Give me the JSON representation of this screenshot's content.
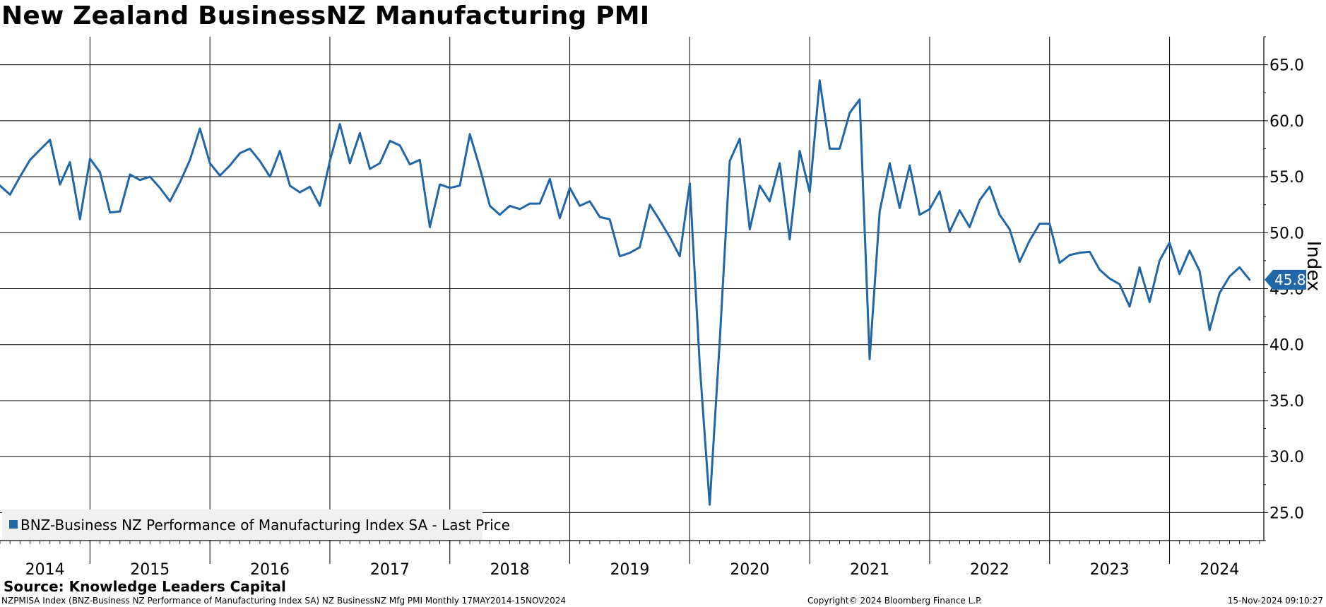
{
  "title": "New Zealand BusinessNZ Manufacturing PMI",
  "source": "Source: Knowledge Leaders Capital",
  "footer": {
    "left": "NZPMISA Index (BNZ-Business NZ Performance of Manufacturing Index SA) NZ BusinessNZ Mfg PMI  Monthly 17MAY2014-15NOV2024",
    "center": "Copyright© 2024 Bloomberg Finance L.P.",
    "right": "15-Nov-2024 09:10:27"
  },
  "colors": {
    "series": "#2166a6",
    "grid": "#000000",
    "legend_bg": "#f0f0f0"
  },
  "chart_data": {
    "type": "line",
    "x_unit": "month",
    "x_start": "2014-04",
    "x_end": "2024-10",
    "ylabel": "Index",
    "ylim": [
      22.5,
      67.5
    ],
    "yticks": [
      25,
      30,
      35,
      40,
      45,
      50,
      55,
      60,
      65
    ],
    "ytick_labels": [
      "25.0",
      "30.0",
      "35.0",
      "40.0",
      "45.0",
      "50.0",
      "55.0",
      "60.0",
      "65.0"
    ],
    "xtick_labels": [
      "2014",
      "2015",
      "2016",
      "2017",
      "2018",
      "2019",
      "2020",
      "2021",
      "2022",
      "2023",
      "2024"
    ],
    "last_value_label": "45.8",
    "grid": true,
    "legend_position": "bottom-left",
    "series": [
      {
        "name": "BNZ-Business NZ Performance of Manufacturing Index SA - Last Price",
        "color": "#2166a6",
        "values": [
          54.2,
          53.4,
          55.0,
          56.5,
          57.4,
          58.3,
          54.3,
          56.3,
          51.2,
          56.6,
          55.4,
          51.8,
          51.9,
          55.2,
          54.7,
          55.0,
          54.0,
          52.8,
          54.5,
          56.5,
          59.3,
          56.2,
          55.1,
          56.0,
          57.1,
          57.5,
          56.4,
          55.0,
          57.3,
          54.2,
          53.6,
          54.1,
          52.4,
          56.4,
          59.7,
          56.2,
          58.9,
          55.7,
          56.2,
          58.2,
          57.8,
          56.1,
          56.5,
          50.5,
          54.3,
          54.0,
          54.2,
          58.8,
          55.8,
          52.4,
          51.6,
          52.4,
          52.1,
          52.6,
          52.6,
          54.8,
          51.3,
          54.0,
          52.4,
          52.8,
          51.4,
          51.2,
          47.9,
          48.2,
          48.7,
          52.5,
          51.1,
          49.6,
          47.9,
          54.4,
          38.2,
          25.7,
          40.3,
          56.4,
          58.4,
          50.3,
          54.2,
          52.8,
          56.2,
          49.4,
          57.3,
          53.6,
          63.6,
          57.5,
          57.5,
          60.7,
          61.9,
          38.7,
          51.9,
          56.2,
          52.2,
          56.0,
          51.6,
          52.1,
          53.7,
          50.1,
          52.0,
          50.5,
          52.9,
          54.1,
          51.6,
          50.3,
          47.4,
          49.3,
          50.8,
          50.8,
          47.3,
          48.0,
          48.2,
          48.3,
          46.7,
          45.9,
          45.4,
          43.4,
          46.9,
          43.8,
          47.5,
          49.1,
          46.3,
          48.4,
          46.6,
          41.3,
          44.6,
          46.1,
          46.9,
          45.8
        ]
      }
    ]
  }
}
